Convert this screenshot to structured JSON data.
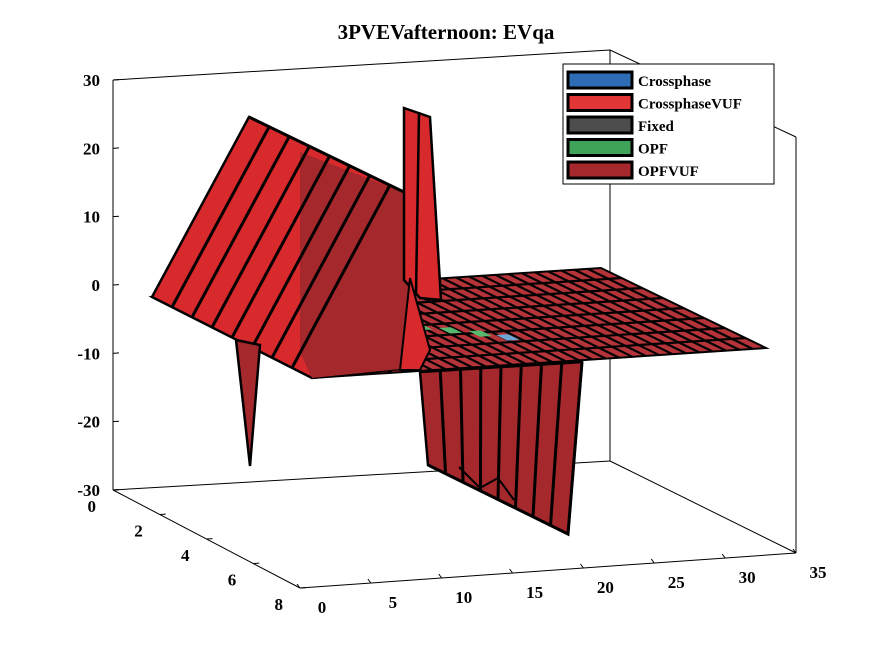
{
  "chart_data": {
    "type": "surface3d",
    "title": "3PVEVafternoon: EVqa",
    "xlabel": "",
    "ylabel": "",
    "zlabel": "",
    "xlim": [
      0,
      35
    ],
    "ylim": [
      0,
      8
    ],
    "zlim": [
      -30,
      30
    ],
    "x_ticks": [
      "0",
      "5",
      "10",
      "15",
      "20",
      "25",
      "30",
      "35"
    ],
    "y_ticks": [
      "0",
      "2",
      "4",
      "6",
      "8"
    ],
    "z_ticks": [
      "30",
      "20",
      "10",
      "0",
      "-10",
      "-20",
      "-30"
    ],
    "grid": false,
    "legend_position": "top-right",
    "legend": [
      {
        "name": "Crossphase",
        "color": "#2e6db5"
      },
      {
        "name": "CrossphaseVUF",
        "color": "#e23535"
      },
      {
        "name": "Fixed",
        "color": "#4d4d4d"
      },
      {
        "name": "OPF",
        "color": "#3fa35a"
      },
      {
        "name": "OPFVUF",
        "color": "#a4282c"
      }
    ],
    "surface_colors": {
      "flat": "#b5343a",
      "wall": "#a4282c",
      "wall_highlight": "#d8292d",
      "edge": "#000000"
    },
    "walls": [
      {
        "x": [
          0,
          8
        ],
        "y_at_x": [
          0.3,
          0.2
        ],
        "z": 25,
        "note": "positive plateau near x 0-8, y ~0"
      },
      {
        "x": [
          8,
          9
        ],
        "y_at_x": [
          0.2,
          0.2
        ],
        "z": 27,
        "note": "positive spike"
      },
      {
        "x": [
          9,
          20
        ],
        "y_at_x": [
          8,
          8
        ],
        "z": -25,
        "note": "negative plateau at far y"
      },
      {
        "x": [
          0,
          1
        ],
        "y_at_x": [
          8,
          8
        ],
        "z": -26,
        "note": "negative spike"
      }
    ],
    "opf_stripe_x": [
      10,
      18
    ],
    "crossphase_stripe_x": [
      18,
      20
    ]
  }
}
